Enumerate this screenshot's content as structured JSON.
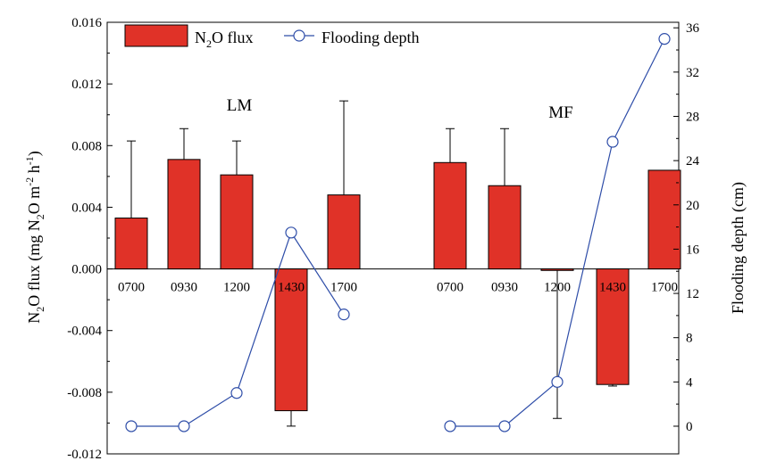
{
  "chart_data": {
    "type": "bar",
    "groups": [
      {
        "label": "LM",
        "categories": [
          "0700",
          "0930",
          "1200",
          "1430",
          "1700"
        ]
      },
      {
        "label": "MF",
        "categories": [
          "0700",
          "0930",
          "1200",
          "1430",
          "1700"
        ]
      }
    ],
    "series": [
      {
        "name": "N2O flux",
        "legend_main": "N",
        "legend_sub": "2",
        "legend_rest": "O flux",
        "type": "bar",
        "axis": "left",
        "color": "#e03228",
        "values": [
          0.0033,
          0.0071,
          0.0061,
          -0.0092,
          0.0048,
          0.0069,
          0.0054,
          -0.0001,
          -0.0075,
          0.0064
        ],
        "error_upper": [
          0.0083,
          0.0091,
          0.0083,
          -0.0102,
          0.0109,
          0.0091,
          0.0091,
          -0.0097,
          -0.0076,
          0.0064
        ]
      },
      {
        "name": "Flooding depth",
        "type": "line",
        "axis": "right",
        "marker": "open-circle",
        "color": "#2e4da8",
        "values": [
          0,
          0,
          3,
          17.5,
          10.1,
          0,
          0,
          4,
          25.7,
          35
        ]
      }
    ],
    "y_left": {
      "label_parts": [
        "N",
        "2",
        "O flux (mg N",
        "2",
        "O m",
        "-2",
        " h",
        "-1",
        ")"
      ],
      "ylim": [
        -0.012,
        0.016
      ],
      "ticks": [
        "0.016",
        "0.012",
        "0.008",
        "0.004",
        "0.000",
        "-0.004",
        "-0.008",
        "-0.012"
      ],
      "tick_values": [
        0.016,
        0.012,
        0.008,
        0.004,
        0.0,
        -0.004,
        -0.008,
        -0.012
      ]
    },
    "y_right": {
      "label": "Flooding depth (cm)",
      "ylim": [
        -2.5,
        36.5
      ],
      "ticks": [
        "36",
        "32",
        "28",
        "24",
        "20",
        "16",
        "12",
        "8",
        "4",
        "0"
      ],
      "tick_values": [
        36,
        32,
        28,
        24,
        20,
        16,
        12,
        8,
        4,
        0
      ]
    },
    "legend_position": "top-left",
    "grid": false
  }
}
